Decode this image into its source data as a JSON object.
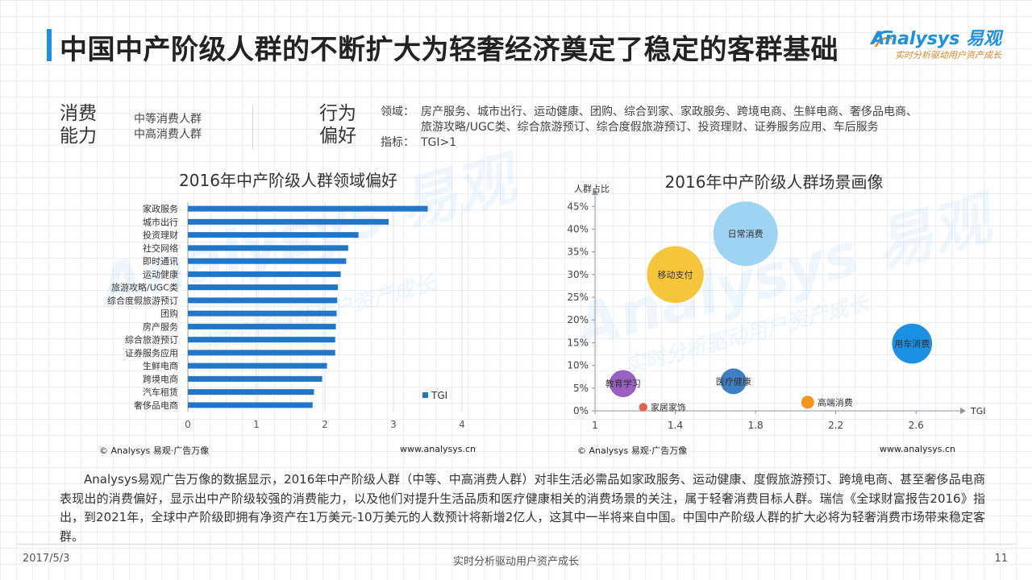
{
  "page_title": "中国中产阶级人群的不断扩大为轻奢经济奠定了稳定的客群基础",
  "brand": {
    "name": "Analysys 易观",
    "slogan": "实时分析驱动用户资产成长"
  },
  "consumption": {
    "label": "消费能力",
    "items": [
      "中等消费人群",
      "中高消费人群"
    ]
  },
  "behavior": {
    "label": "行为偏好",
    "domain_label": "领域：",
    "domain_line1": "房产服务、城市出行、运动健康、团购、综合到家、家政服务、跨境电商、生鲜电商、奢侈品电商、",
    "domain_line2": "旅游攻略/UGC类、综合旅游预订、综合度假旅游预订、投资理财、证券服务应用、车后服务",
    "index_label": "指标：",
    "index_value": "TGI>1"
  },
  "watermark": {
    "text": "Analysys 易观",
    "slogan": "实时分析驱动用户资产成长"
  },
  "colors": {
    "accent": "#1f8fe0",
    "bar": "#2176c7",
    "orange": "#e0892b"
  },
  "chart_data": [
    {
      "type": "bar",
      "orientation": "horizontal",
      "title": "2016年中产阶级人群领域偏好",
      "categories": [
        "家政服务",
        "城市出行",
        "投资理财",
        "社交网络",
        "即时通讯",
        "运动健康",
        "旅游攻略/UGC类",
        "综合度假旅游预订",
        "团购",
        "房产服务",
        "综合旅游预订",
        "证券服务应用",
        "生鲜电商",
        "跨境电商",
        "汽车租赁",
        "奢侈品电商"
      ],
      "series": [
        {
          "name": "TGI",
          "values": [
            3.5,
            2.93,
            2.49,
            2.34,
            2.31,
            2.23,
            2.19,
            2.18,
            2.17,
            2.16,
            2.15,
            2.15,
            2.03,
            1.96,
            1.84,
            1.82
          ]
        }
      ],
      "xlim": [
        0,
        4
      ],
      "xticks": [
        "0",
        "1",
        "2",
        "3",
        "4"
      ],
      "grid": "vertical",
      "legend": "bottom-right",
      "source": "© Analysys 易观·广告万像",
      "website": "www.analysys.cn"
    },
    {
      "type": "scatter",
      "subtype": "bubble",
      "title": "2016年中产阶级人群场景画像",
      "ylabel": "人群占比",
      "xlabel": "TGI",
      "xlim": [
        1,
        2.8
      ],
      "ylim": [
        0,
        0.47
      ],
      "xticks": [
        "1",
        "1.4",
        "1.8",
        "2.2",
        "2.6"
      ],
      "yticks": [
        "0%",
        "5%",
        "10%",
        "15%",
        "20%",
        "25%",
        "30%",
        "35%",
        "40%",
        "45%"
      ],
      "points": [
        {
          "label": "日常消费",
          "x": 1.75,
          "y": 0.39,
          "size": 1.0,
          "color": "#9fd3f2"
        },
        {
          "label": "移动支付",
          "x": 1.4,
          "y": 0.3,
          "size": 0.88,
          "color": "#f5c63c"
        },
        {
          "label": "用车消费",
          "x": 2.58,
          "y": 0.148,
          "size": 0.62,
          "color": "#1a8fe3"
        },
        {
          "label": "医疗健康",
          "x": 1.69,
          "y": 0.065,
          "size": 0.4,
          "color": "#3e7fc4"
        },
        {
          "label": "教育学习",
          "x": 1.14,
          "y": 0.06,
          "size": 0.42,
          "color": "#9a5fc3"
        },
        {
          "label": "高端消费",
          "x": 2.06,
          "y": 0.019,
          "size": 0.2,
          "color": "#f5941f"
        },
        {
          "label": "家居家饰",
          "x": 1.24,
          "y": 0.008,
          "size": 0.13,
          "color": "#ea5d4f"
        }
      ],
      "source": "© Analysys 易观·广告万像",
      "website": "www.analysys.cn"
    }
  ],
  "paragraph": "Analysys易观广告万像的数据显示，2016年中产阶级人群（中等、中高消费人群）对非生活必需品如家政服务、运动健康、度假旅游预订、跨境电商、甚至奢侈品电商表现出的消费偏好，显示出中产阶级较强的消费能力，以及他们对提升生活品质和医疗健康相关的消费场景的关注，属于轻奢消费目标人群。瑞信《全球财富报告2016》指出，到2021年，全球中产阶级即拥有净资产在1万美元-10万美元的人数预计将新增2亿人，这其中一半将来自中国。中国中产阶级人群的扩大必将为轻奢消费市场带来稳定客群。",
  "footer": {
    "date": "2017/5/3",
    "slogan": "实时分析驱动用户资产成长",
    "page": "11"
  }
}
